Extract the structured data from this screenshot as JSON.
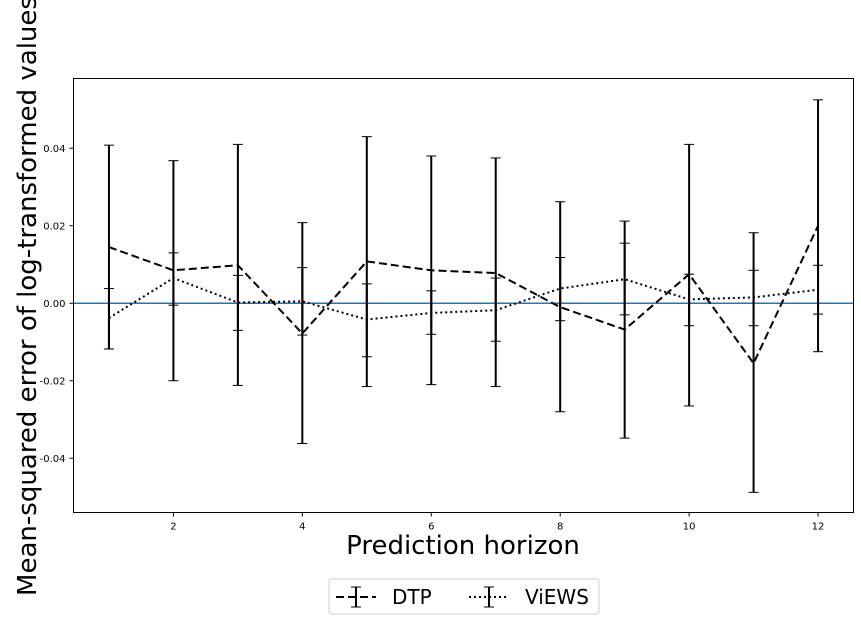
{
  "chart_data": {
    "type": "line",
    "title": "",
    "xlabel": "Prediction horizon",
    "ylabel": "Mean-squared error of log-transformed values",
    "xlim": [
      0.45,
      12.55
    ],
    "ylim": [
      -0.054,
      0.058
    ],
    "x": [
      1,
      2,
      3,
      4,
      5,
      6,
      7,
      8,
      9,
      10,
      11,
      12
    ],
    "x_ticks": [
      2,
      4,
      6,
      8,
      10,
      12
    ],
    "y_ticks": [
      -0.04,
      -0.02,
      0.0,
      0.02,
      0.04
    ],
    "x_tick_labels": [
      "2",
      "4",
      "6",
      "8",
      "10",
      "12"
    ],
    "y_tick_labels": [
      "-0.04",
      "-0.02",
      "0.00",
      "0.02",
      "0.04"
    ],
    "reference_line": {
      "y": 0,
      "color": "#1f77b4"
    },
    "grid": false,
    "legend": {
      "placement": "bottom-center",
      "ncol": 2
    },
    "series": [
      {
        "name": "DTP",
        "style": "dashed",
        "color": "#000000",
        "values": [
          0.0145,
          0.0085,
          0.0098,
          -0.0078,
          0.0108,
          0.0085,
          0.0078,
          -0.001,
          -0.0068,
          0.0075,
          -0.0155,
          0.02
        ],
        "lower": [
          -0.0118,
          -0.02,
          -0.0212,
          -0.0362,
          -0.0215,
          -0.021,
          -0.0215,
          -0.028,
          -0.0348,
          -0.0265,
          -0.0488,
          -0.0125
        ],
        "upper": [
          0.0408,
          0.0368,
          0.041,
          0.0208,
          0.043,
          0.038,
          0.0375,
          0.0262,
          0.0212,
          0.041,
          0.0182,
          0.0525
        ]
      },
      {
        "name": "ViEWS",
        "style": "dotted",
        "color": "#000000",
        "values": [
          -0.0038,
          0.0065,
          0.0002,
          0.0005,
          -0.0042,
          -0.0025,
          -0.0018,
          0.0038,
          0.0062,
          0.001,
          0.0015,
          0.0035
        ],
        "lower": [
          -0.0118,
          -0.0005,
          -0.007,
          -0.0082,
          -0.0138,
          -0.008,
          -0.0098,
          -0.0045,
          -0.003,
          -0.0058,
          -0.0058,
          -0.0028
        ],
        "upper": [
          0.0038,
          0.013,
          0.0072,
          0.0092,
          0.005,
          0.0032,
          0.0065,
          0.0118,
          0.0155,
          0.0075,
          0.0085,
          0.0098
        ]
      }
    ]
  }
}
